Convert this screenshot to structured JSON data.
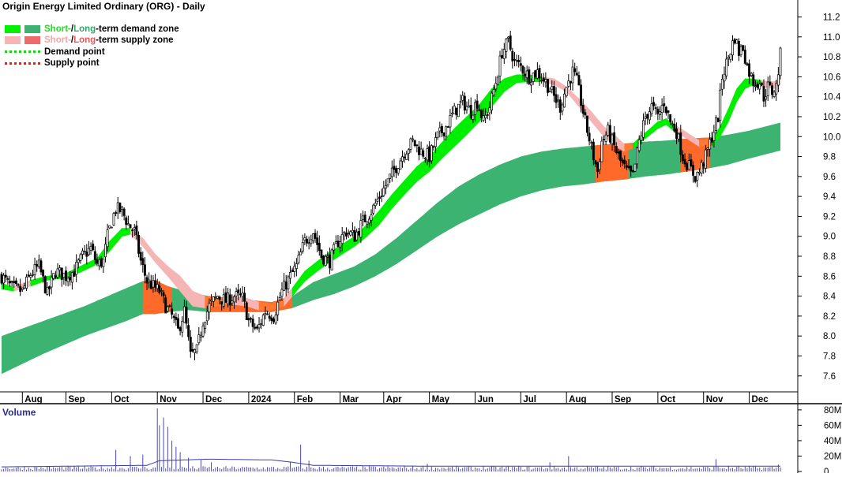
{
  "chart_data": {
    "type": "candlestick",
    "title": "Origin Energy Limited Ordinary (ORG) - Daily",
    "legend": {
      "placement": "top-left",
      "items": [
        {
          "parts": [
            {
              "text": "Short-",
              "color": "#22dd22"
            },
            {
              "text": " / ",
              "color": "#000000"
            },
            {
              "text": "Long",
              "color": "#2fa86a"
            },
            {
              "text": "-term demand zone",
              "color": "#000000"
            }
          ],
          "swatches": [
            "#00ee00",
            "#3cb371"
          ]
        },
        {
          "parts": [
            {
              "text": "Short-",
              "color": "#f2a6a6"
            },
            {
              "text": " / ",
              "color": "#000000"
            },
            {
              "text": "Long",
              "color": "#ee5555"
            },
            {
              "text": "-term supply zone",
              "color": "#000000"
            }
          ],
          "swatches": [
            "#f5b5b5",
            "#ef6a6a"
          ]
        },
        {
          "parts": [
            {
              "text": "Demand point",
              "color": "#000000"
            }
          ],
          "dash": "#22cc22"
        },
        {
          "parts": [
            {
              "text": "Supply point",
              "color": "#000000"
            }
          ],
          "dash": "#dd2222"
        }
      ]
    },
    "x_axis": {
      "labels": [
        "Aug",
        "Sep",
        "Oct",
        "Nov",
        "Dec",
        "2024",
        "Feb",
        "Mar",
        "Apr",
        "May",
        "Jun",
        "Jul",
        "Aug",
        "Sep",
        "Oct",
        "Nov",
        "Dec"
      ],
      "label_index": [
        10,
        31,
        53,
        75,
        97,
        119,
        141,
        163,
        184,
        206,
        228,
        250,
        272,
        294,
        316,
        338,
        360
      ]
    },
    "y_axis": {
      "ticks": [
        7.6,
        7.8,
        8.0,
        8.2,
        8.4,
        8.6,
        8.8,
        9.0,
        9.2,
        9.4,
        9.6,
        9.8,
        10.0,
        10.2,
        10.4,
        10.6,
        10.8,
        11.0,
        11.2
      ],
      "tick_labels": [
        "7.6",
        "7.8",
        "8.0",
        "8.2",
        "8.4",
        "8.6",
        "8.8",
        "9.0",
        "9.2",
        "9.4",
        "9.6",
        "9.8",
        "10.0",
        "10.2",
        "10.4",
        "10.6",
        "10.8",
        "11.0",
        "11.2"
      ],
      "range": [
        7.44,
        11.37
      ]
    },
    "price_anchors": [
      [
        0,
        8.6
      ],
      [
        5,
        8.48
      ],
      [
        10,
        8.45
      ],
      [
        14,
        8.62
      ],
      [
        18,
        8.7
      ],
      [
        22,
        8.42
      ],
      [
        26,
        8.65
      ],
      [
        31,
        8.6
      ],
      [
        35,
        8.65
      ],
      [
        39,
        8.8
      ],
      [
        43,
        8.88
      ],
      [
        46,
        8.72
      ],
      [
        49,
        8.75
      ],
      [
        51,
        9.0
      ],
      [
        53,
        9.15
      ],
      [
        55,
        9.28
      ],
      [
        58,
        9.25
      ],
      [
        61,
        9.12
      ],
      [
        64,
        9.05
      ],
      [
        67,
        8.75
      ],
      [
        70,
        8.55
      ],
      [
        73,
        8.5
      ],
      [
        76,
        8.45
      ],
      [
        79,
        8.3
      ],
      [
        82,
        8.2
      ],
      [
        85,
        8.05
      ],
      [
        88,
        8.25
      ],
      [
        91,
        7.8
      ],
      [
        94,
        7.85
      ],
      [
        97,
        8.15
      ],
      [
        100,
        8.3
      ],
      [
        104,
        8.4
      ],
      [
        108,
        8.35
      ],
      [
        112,
        8.4
      ],
      [
        116,
        8.38
      ],
      [
        119,
        8.15
      ],
      [
        123,
        8.05
      ],
      [
        127,
        8.25
      ],
      [
        131,
        8.2
      ],
      [
        135,
        8.45
      ],
      [
        139,
        8.6
      ],
      [
        142,
        8.7
      ],
      [
        146,
        8.95
      ],
      [
        150,
        9.05
      ],
      [
        154,
        8.8
      ],
      [
        158,
        8.75
      ],
      [
        162,
        8.95
      ],
      [
        166,
        9.05
      ],
      [
        170,
        9.0
      ],
      [
        174,
        9.15
      ],
      [
        178,
        9.25
      ],
      [
        182,
        9.4
      ],
      [
        186,
        9.55
      ],
      [
        190,
        9.7
      ],
      [
        194,
        9.85
      ],
      [
        198,
        9.95
      ],
      [
        202,
        9.85
      ],
      [
        206,
        9.8
      ],
      [
        210,
        10.0
      ],
      [
        214,
        10.1
      ],
      [
        218,
        10.25
      ],
      [
        222,
        10.35
      ],
      [
        226,
        10.25
      ],
      [
        229,
        10.35
      ],
      [
        232,
        10.15
      ],
      [
        235,
        10.3
      ],
      [
        238,
        10.55
      ],
      [
        241,
        10.85
      ],
      [
        244,
        10.95
      ],
      [
        247,
        10.75
      ],
      [
        250,
        10.7
      ],
      [
        254,
        10.6
      ],
      [
        258,
        10.65
      ],
      [
        262,
        10.55
      ],
      [
        266,
        10.4
      ],
      [
        269,
        10.3
      ],
      [
        272,
        10.5
      ],
      [
        275,
        10.65
      ],
      [
        277,
        10.55
      ],
      [
        281,
        10.15
      ],
      [
        285,
        9.8
      ],
      [
        287,
        9.65
      ],
      [
        289,
        9.95
      ],
      [
        292,
        10.05
      ],
      [
        295,
        9.9
      ],
      [
        298,
        9.75
      ],
      [
        301,
        9.65
      ],
      [
        304,
        9.6
      ],
      [
        307,
        9.95
      ],
      [
        310,
        10.2
      ],
      [
        313,
        10.3
      ],
      [
        316,
        10.2
      ],
      [
        319,
        10.35
      ],
      [
        322,
        10.15
      ],
      [
        325,
        10.05
      ],
      [
        328,
        9.8
      ],
      [
        331,
        9.7
      ],
      [
        334,
        9.6
      ],
      [
        336,
        9.65
      ],
      [
        339,
        9.8
      ],
      [
        342,
        10.0
      ],
      [
        345,
        10.2
      ],
      [
        347,
        10.6
      ],
      [
        350,
        10.8
      ],
      [
        353,
        11.0
      ],
      [
        355,
        10.85
      ],
      [
        357,
        10.9
      ],
      [
        359,
        10.7
      ],
      [
        362,
        10.55
      ],
      [
        365,
        10.55
      ],
      [
        367,
        10.4
      ],
      [
        369,
        10.5
      ],
      [
        371,
        10.45
      ],
      [
        373,
        10.5
      ],
      [
        375,
        10.82
      ]
    ],
    "short_zone_anchors": [
      [
        0,
        8.47,
        8.53,
        "d"
      ],
      [
        6,
        8.45,
        8.49,
        "s"
      ],
      [
        14,
        8.5,
        8.56,
        "d"
      ],
      [
        22,
        8.56,
        8.6,
        "d"
      ],
      [
        30,
        8.58,
        8.62,
        "d"
      ],
      [
        38,
        8.64,
        8.7,
        "d"
      ],
      [
        46,
        8.72,
        8.78,
        "d"
      ],
      [
        52,
        8.85,
        8.95,
        "d"
      ],
      [
        58,
        9.0,
        9.08,
        "d"
      ],
      [
        62,
        9.02,
        9.08,
        "s"
      ],
      [
        68,
        8.9,
        8.98,
        "s"
      ],
      [
        74,
        8.74,
        8.82,
        "s"
      ],
      [
        80,
        8.6,
        8.7,
        "s"
      ],
      [
        86,
        8.45,
        8.6,
        "s"
      ],
      [
        92,
        8.3,
        8.45,
        "s"
      ],
      [
        98,
        8.28,
        8.4,
        "s"
      ],
      [
        104,
        8.3,
        8.38,
        "s"
      ],
      [
        110,
        8.32,
        8.4,
        "s"
      ],
      [
        118,
        8.3,
        8.38,
        "s"
      ],
      [
        124,
        8.26,
        8.34,
        "s"
      ],
      [
        130,
        8.26,
        8.32,
        "s"
      ],
      [
        136,
        8.3,
        8.38,
        "s"
      ],
      [
        140,
        8.4,
        8.48,
        "d"
      ],
      [
        146,
        8.55,
        8.65,
        "d"
      ],
      [
        152,
        8.65,
        8.75,
        "d"
      ],
      [
        158,
        8.74,
        8.84,
        "d"
      ],
      [
        164,
        8.82,
        8.92,
        "d"
      ],
      [
        170,
        8.9,
        9.0,
        "d"
      ],
      [
        176,
        9.0,
        9.12,
        "d"
      ],
      [
        182,
        9.12,
        9.26,
        "d"
      ],
      [
        188,
        9.28,
        9.42,
        "d"
      ],
      [
        194,
        9.42,
        9.56,
        "d"
      ],
      [
        200,
        9.55,
        9.7,
        "d"
      ],
      [
        206,
        9.65,
        9.8,
        "d"
      ],
      [
        212,
        9.78,
        9.94,
        "d"
      ],
      [
        218,
        9.9,
        10.08,
        "d"
      ],
      [
        224,
        10.02,
        10.2,
        "d"
      ],
      [
        230,
        10.15,
        10.32,
        "d"
      ],
      [
        236,
        10.3,
        10.48,
        "d"
      ],
      [
        242,
        10.45,
        10.58,
        "d"
      ],
      [
        248,
        10.54,
        10.62,
        "d"
      ],
      [
        254,
        10.55,
        10.62,
        "d"
      ],
      [
        260,
        10.55,
        10.6,
        "s"
      ],
      [
        266,
        10.52,
        10.58,
        "s"
      ],
      [
        272,
        10.45,
        10.5,
        "s"
      ],
      [
        278,
        10.3,
        10.38,
        "s"
      ],
      [
        284,
        10.15,
        10.25,
        "s"
      ],
      [
        290,
        10.0,
        10.1,
        "s"
      ],
      [
        296,
        9.9,
        10.0,
        "s"
      ],
      [
        300,
        9.85,
        9.92,
        "s"
      ],
      [
        304,
        9.88,
        9.93,
        "d"
      ],
      [
        310,
        9.98,
        10.04,
        "d"
      ],
      [
        316,
        10.08,
        10.15,
        "d"
      ],
      [
        320,
        10.12,
        10.18,
        "d"
      ],
      [
        324,
        10.05,
        10.12,
        "s"
      ],
      [
        330,
        9.98,
        10.04,
        "s"
      ],
      [
        336,
        9.9,
        9.96,
        "s"
      ],
      [
        342,
        9.9,
        9.98,
        "d"
      ],
      [
        346,
        10.0,
        10.1,
        "d"
      ],
      [
        350,
        10.15,
        10.28,
        "d"
      ],
      [
        354,
        10.35,
        10.48,
        "d"
      ],
      [
        358,
        10.48,
        10.58,
        "d"
      ],
      [
        362,
        10.52,
        10.58,
        "d"
      ],
      [
        366,
        10.5,
        10.56,
        "s"
      ],
      [
        372,
        10.48,
        10.55,
        "s"
      ],
      [
        375,
        10.52,
        10.58,
        "s"
      ]
    ],
    "long_zone_anchors": [
      [
        0,
        7.62,
        8.0
      ],
      [
        20,
        7.82,
        8.15
      ],
      [
        40,
        8.0,
        8.3
      ],
      [
        60,
        8.15,
        8.48
      ],
      [
        68,
        8.22,
        8.55
      ],
      [
        74,
        8.22,
        8.56
      ],
      [
        80,
        8.24,
        8.5
      ],
      [
        90,
        8.26,
        8.44
      ],
      [
        100,
        8.24,
        8.4
      ],
      [
        110,
        8.24,
        8.38
      ],
      [
        120,
        8.24,
        8.36
      ],
      [
        130,
        8.24,
        8.34
      ],
      [
        140,
        8.28,
        8.4
      ],
      [
        150,
        8.36,
        8.54
      ],
      [
        160,
        8.42,
        8.62
      ],
      [
        170,
        8.5,
        8.7
      ],
      [
        180,
        8.6,
        8.82
      ],
      [
        190,
        8.72,
        8.98
      ],
      [
        200,
        8.86,
        9.16
      ],
      [
        210,
        9.0,
        9.34
      ],
      [
        220,
        9.12,
        9.5
      ],
      [
        230,
        9.22,
        9.62
      ],
      [
        240,
        9.32,
        9.72
      ],
      [
        250,
        9.4,
        9.8
      ],
      [
        260,
        9.46,
        9.85
      ],
      [
        270,
        9.5,
        9.88
      ],
      [
        280,
        9.52,
        9.9
      ],
      [
        290,
        9.55,
        9.92
      ],
      [
        300,
        9.57,
        9.93
      ],
      [
        310,
        9.6,
        9.95
      ],
      [
        320,
        9.62,
        9.96
      ],
      [
        330,
        9.65,
        9.98
      ],
      [
        340,
        9.68,
        9.99
      ],
      [
        350,
        9.72,
        10.02
      ],
      [
        360,
        9.78,
        10.06
      ],
      [
        375,
        9.86,
        10.14
      ]
    ],
    "long_supply_ranges": [
      [
        68,
        82
      ],
      [
        100,
        140
      ],
      [
        286,
        302
      ],
      [
        327,
        341
      ]
    ],
    "demand_points": [],
    "supply_points": [],
    "volume": {
      "label": "Volume",
      "ticks": [
        0,
        20,
        40,
        60,
        80
      ],
      "tick_labels": [
        "0",
        "20M",
        "40M",
        "60M",
        "80M"
      ],
      "range": [
        0,
        86
      ],
      "spikes": [
        [
          55,
          28
        ],
        [
          62,
          20
        ],
        [
          68,
          22
        ],
        [
          75,
          82
        ],
        [
          76,
          60
        ],
        [
          78,
          70
        ],
        [
          80,
          58
        ],
        [
          82,
          40
        ],
        [
          84,
          32
        ],
        [
          86,
          25
        ],
        [
          90,
          18
        ],
        [
          96,
          15
        ],
        [
          101,
          12
        ],
        [
          139,
          12
        ],
        [
          144,
          35
        ],
        [
          148,
          14
        ],
        [
          205,
          10
        ],
        [
          264,
          12
        ],
        [
          273,
          20
        ],
        [
          344,
          16
        ],
        [
          374,
          9
        ]
      ],
      "avg_anchors": [
        [
          0,
          6
        ],
        [
          70,
          8
        ],
        [
          76,
          14
        ],
        [
          100,
          16
        ],
        [
          130,
          15
        ],
        [
          140,
          12
        ],
        [
          150,
          8
        ],
        [
          200,
          7
        ],
        [
          300,
          7
        ],
        [
          375,
          7
        ]
      ]
    }
  }
}
